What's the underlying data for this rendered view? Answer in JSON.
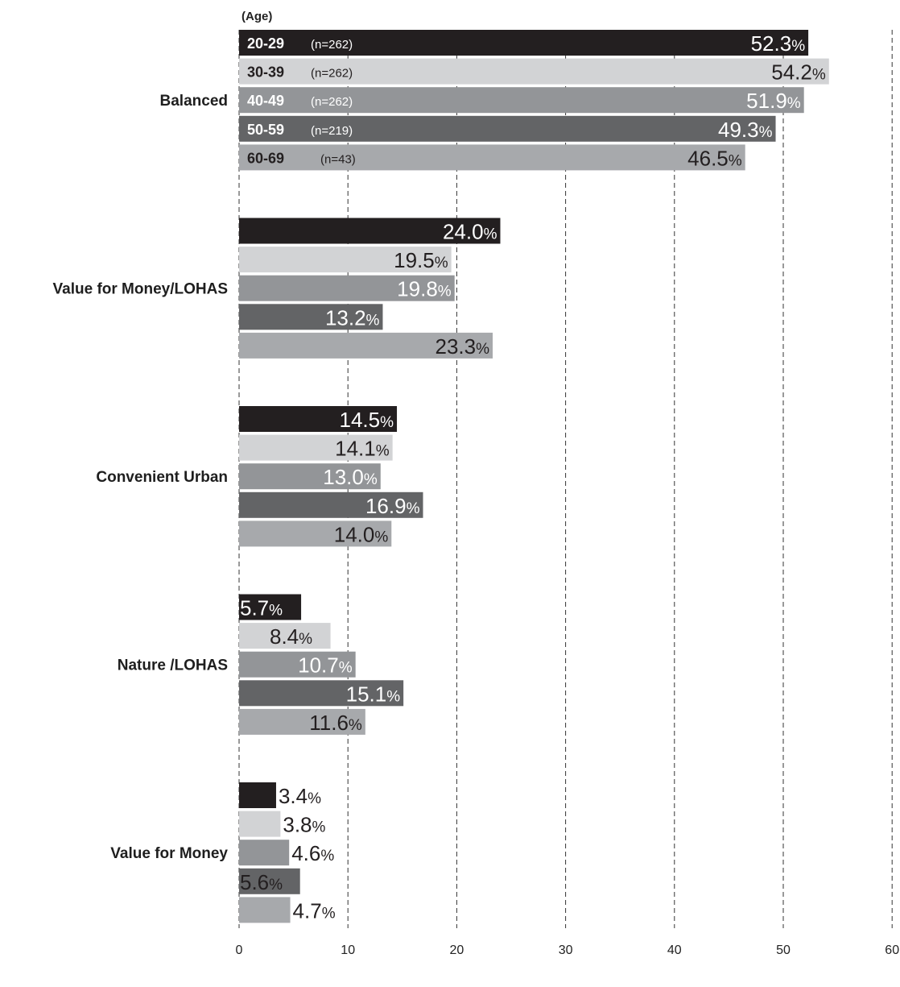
{
  "chart_data": {
    "type": "bar",
    "orientation": "horizontal",
    "legend_title": "(Age)",
    "categories": [
      "Balanced",
      "Value for Money/LOHAS",
      "Convenient Urban",
      "Nature /LOHAS",
      "Value for Money"
    ],
    "series": [
      {
        "name": "20-29",
        "n": "(n=262)",
        "color": "#231f20",
        "values": [
          52.3,
          24.0,
          14.5,
          5.7,
          3.4
        ],
        "labels": [
          "52.3",
          "24.0",
          "14.5",
          "5.7",
          "3.4"
        ]
      },
      {
        "name": "30-39",
        "n": "(n=262)",
        "color": "#d2d3d5",
        "values": [
          54.2,
          19.5,
          14.1,
          8.4,
          3.8
        ],
        "labels": [
          "54.2",
          "19.5",
          "14.1",
          "8.4",
          "3.8"
        ]
      },
      {
        "name": "40-49",
        "n": "(n=262)",
        "color": "#939598",
        "values": [
          51.9,
          19.8,
          13.0,
          10.7,
          4.6
        ],
        "labels": [
          "51.9",
          "19.8",
          "13.0",
          "10.7",
          "4.6"
        ]
      },
      {
        "name": "50-59",
        "n": "(n=219)",
        "color": "#636466",
        "values": [
          49.3,
          13.2,
          16.9,
          15.1,
          5.6
        ],
        "labels": [
          "49.3",
          "13.2",
          "16.9",
          "15.1",
          "5.6"
        ]
      },
      {
        "name": "60-69",
        "n": "(n=43)",
        "color": "#a7a9ac",
        "values": [
          46.5,
          23.3,
          14.0,
          11.6,
          4.7
        ],
        "labels": [
          "46.5",
          "23.3",
          "14.0",
          "11.6",
          "4.7"
        ]
      }
    ],
    "percent_symbol": "%",
    "xlim": [
      0,
      60
    ],
    "xticks": [
      "0",
      "10",
      "20",
      "30",
      "40",
      "50",
      "60"
    ],
    "grid": true,
    "title": "",
    "xlabel": "",
    "ylabel": ""
  }
}
